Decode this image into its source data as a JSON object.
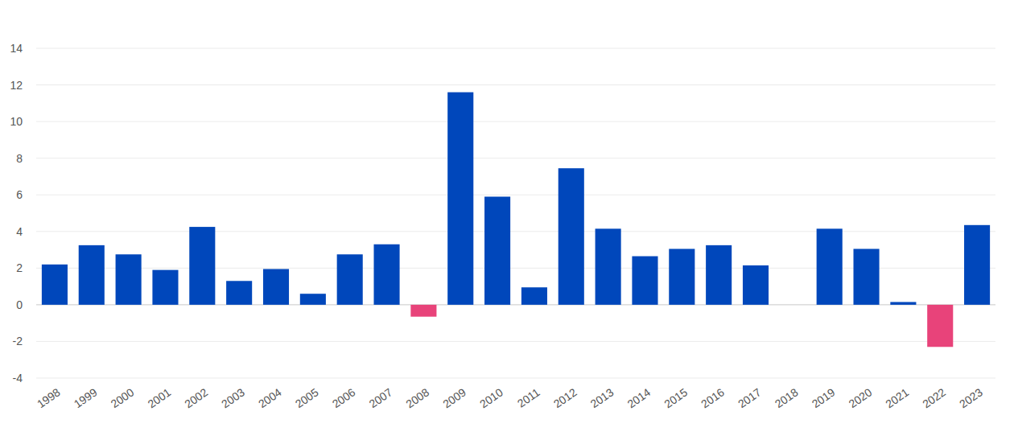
{
  "chart_data": {
    "type": "bar",
    "categories": [
      "1998",
      "1999",
      "2000",
      "2001",
      "2002",
      "2003",
      "2004",
      "2005",
      "2006",
      "2007",
      "2008",
      "2009",
      "2010",
      "2011",
      "2012",
      "2013",
      "2014",
      "2015",
      "2016",
      "2017",
      "2018",
      "2019",
      "2020",
      "2021",
      "2022",
      "2023"
    ],
    "values": [
      2.2,
      3.25,
      2.75,
      1.9,
      4.25,
      1.3,
      1.95,
      0.6,
      2.75,
      3.3,
      -0.65,
      11.6,
      5.9,
      0.95,
      7.45,
      4.15,
      2.65,
      3.05,
      3.25,
      2.15,
      0,
      4.15,
      3.05,
      0.15,
      -2.3,
      4.35
    ],
    "colors": [
      "#0047bb",
      "#0047bb",
      "#0047bb",
      "#0047bb",
      "#0047bb",
      "#0047bb",
      "#0047bb",
      "#0047bb",
      "#0047bb",
      "#0047bb",
      "#e8437a",
      "#0047bb",
      "#0047bb",
      "#0047bb",
      "#0047bb",
      "#0047bb",
      "#0047bb",
      "#0047bb",
      "#0047bb",
      "#0047bb",
      "#0047bb",
      "#0047bb",
      "#0047bb",
      "#0047bb",
      "#e8437a",
      "#0047bb"
    ],
    "ylim": [
      -4,
      14
    ],
    "yticks": [
      -4,
      -2,
      0,
      2,
      4,
      6,
      8,
      10,
      12,
      14
    ],
    "grid": true
  }
}
